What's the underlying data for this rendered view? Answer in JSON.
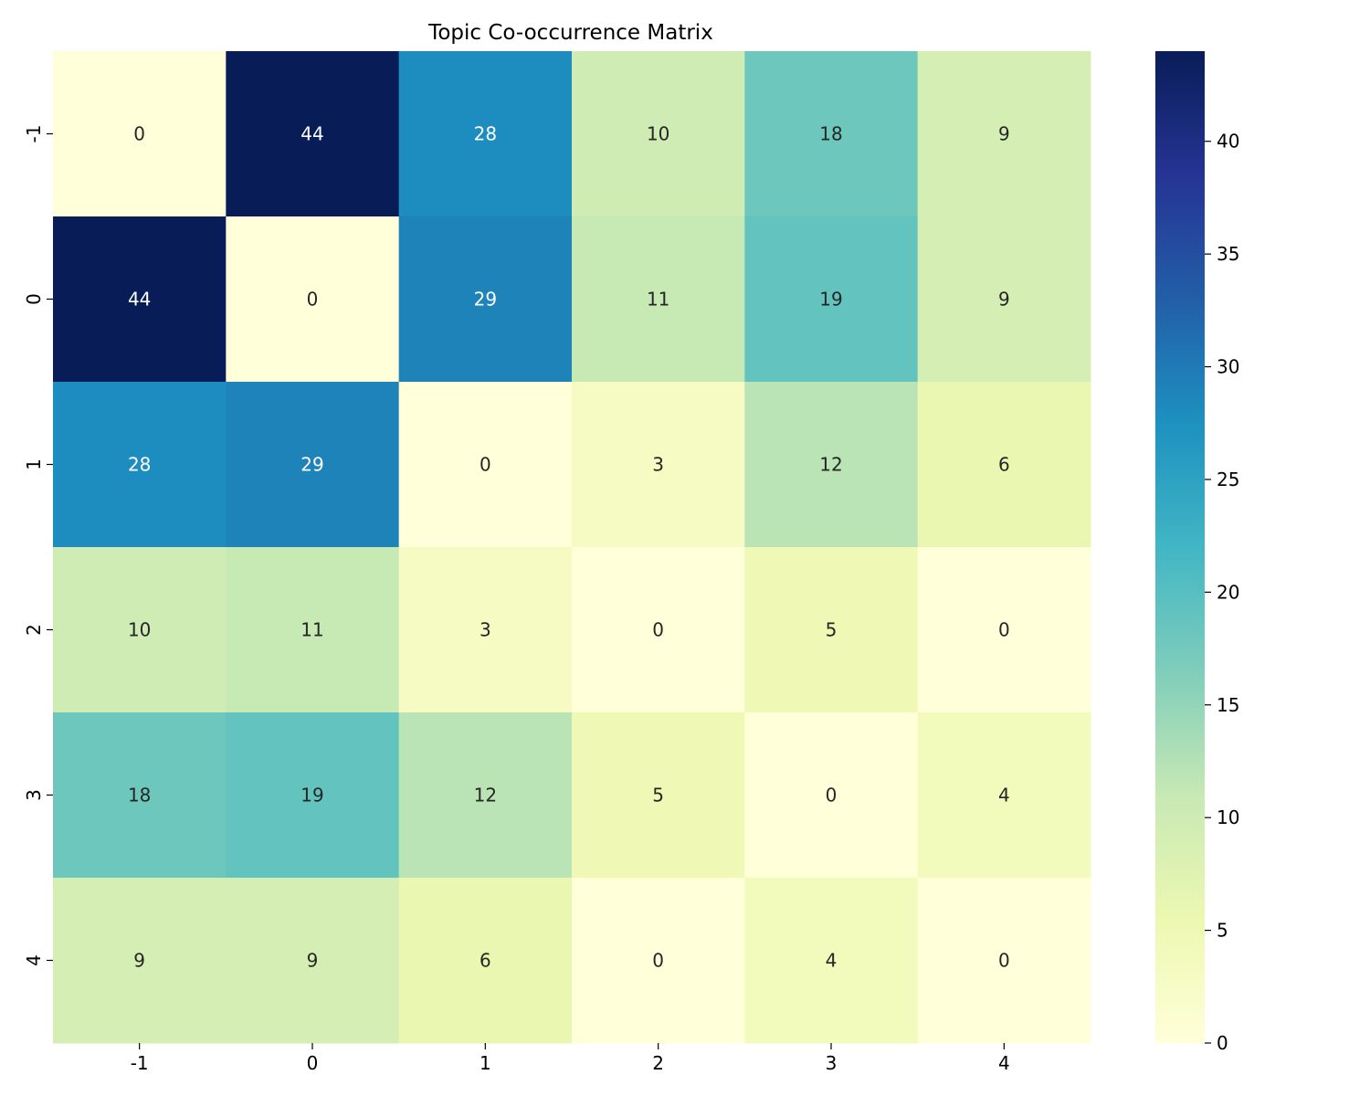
{
  "chart_data": {
    "type": "heatmap",
    "title": "Topic Co-occurrence Matrix",
    "xlabel": "",
    "ylabel": "",
    "x_categories": [
      "-1",
      "0",
      "1",
      "2",
      "3",
      "4"
    ],
    "y_categories": [
      "-1",
      "0",
      "1",
      "2",
      "3",
      "4"
    ],
    "values": [
      [
        0,
        44,
        28,
        10,
        18,
        9
      ],
      [
        44,
        0,
        29,
        11,
        19,
        9
      ],
      [
        28,
        29,
        0,
        3,
        12,
        6
      ],
      [
        10,
        11,
        3,
        0,
        5,
        0
      ],
      [
        18,
        19,
        12,
        5,
        0,
        4
      ],
      [
        9,
        9,
        6,
        0,
        4,
        0
      ]
    ],
    "annotations": true,
    "colormap": "YlGnBu",
    "colorbar": {
      "range": [
        0,
        44
      ],
      "ticks": [
        0,
        5,
        10,
        15,
        20,
        25,
        30,
        35,
        40
      ]
    },
    "colors": {
      "text_dark": "#262626",
      "text_light": "#ffffff"
    }
  }
}
